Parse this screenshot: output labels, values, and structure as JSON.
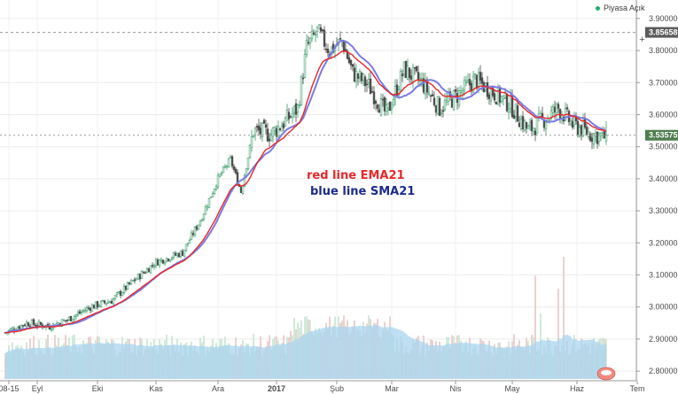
{
  "status": {
    "label": "Piyasa Açık",
    "color": "#2bab6b"
  },
  "annotations": {
    "ema": "red line EMA21",
    "sma": "blue line SMA21"
  },
  "colors": {
    "up": "#3b9e6a",
    "down": "#4a4a4a",
    "ema": "#e8282b",
    "sma": "#7b7be3",
    "volume": "#a9d4ef",
    "volume_ma": "#8cc4ea",
    "price_label_bg": "#5b5b5b",
    "last_price_bg": "#4f7d4f"
  },
  "chart_data": {
    "type": "candlestick",
    "ylim": [
      2.77,
      3.93
    ],
    "y_ticks": [
      "3.90000",
      "3.80000",
      "3.70000",
      "3.60000",
      "3.50000",
      "3.40000",
      "3.30000",
      "3.20000",
      "3.10000",
      "3.00000",
      "2.90000",
      "2.80000"
    ],
    "x_ticks": [
      "08-15",
      "Eyl",
      "Eki",
      "Kas",
      "Ara",
      "2017",
      "Şub",
      "Mar",
      "Nis",
      "May",
      "Haz",
      "Tem"
    ],
    "price_labels": {
      "high": "3.85658",
      "last": "3.53575"
    },
    "high_value": 3.85658,
    "last_value": 3.53575,
    "price_anchors": [
      [
        0,
        2.92
      ],
      [
        12,
        2.95
      ],
      [
        25,
        2.94
      ],
      [
        35,
        2.96
      ],
      [
        48,
        3.0
      ],
      [
        60,
        3.02
      ],
      [
        72,
        3.08
      ],
      [
        85,
        3.14
      ],
      [
        100,
        3.17
      ],
      [
        110,
        3.27
      ],
      [
        120,
        3.4
      ],
      [
        127,
        3.46
      ],
      [
        133,
        3.36
      ],
      [
        140,
        3.55
      ],
      [
        150,
        3.54
      ],
      [
        158,
        3.58
      ],
      [
        165,
        3.62
      ],
      [
        170,
        3.81
      ],
      [
        176,
        3.86
      ],
      [
        183,
        3.8
      ],
      [
        190,
        3.83
      ],
      [
        196,
        3.73
      ],
      [
        205,
        3.69
      ],
      [
        215,
        3.6
      ],
      [
        225,
        3.74
      ],
      [
        235,
        3.7
      ],
      [
        245,
        3.62
      ],
      [
        255,
        3.66
      ],
      [
        265,
        3.71
      ],
      [
        275,
        3.67
      ],
      [
        285,
        3.63
      ],
      [
        295,
        3.55
      ],
      [
        305,
        3.59
      ],
      [
        312,
        3.62
      ],
      [
        320,
        3.57
      ],
      [
        330,
        3.54
      ],
      [
        339,
        3.53
      ]
    ],
    "volume_spikes": [
      [
        30,
        0.22
      ],
      [
        95,
        0.18
      ],
      [
        135,
        0.14
      ],
      [
        165,
        0.3
      ],
      [
        195,
        0.25
      ],
      [
        260,
        0.2
      ],
      [
        299,
        0.55
      ],
      [
        302,
        0.35
      ],
      [
        312,
        0.48
      ],
      [
        315,
        0.65
      ]
    ],
    "series": [
      {
        "name": "EMA21",
        "color": "#e8282b"
      },
      {
        "name": "SMA21",
        "color": "#7b7be3"
      }
    ],
    "grid": true
  }
}
